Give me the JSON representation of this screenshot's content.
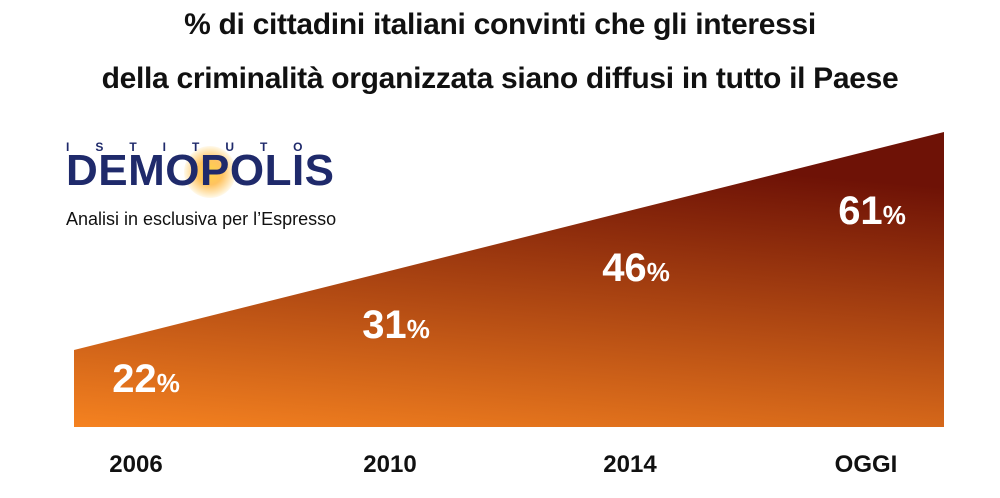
{
  "title_lines": [
    "% di cittadini italiani convinti che gli interessi",
    "della criminalità organizzata siano diffusi in tutto il Paese"
  ],
  "logo": {
    "top_word": "ISTITUTO",
    "main_word": "DEMOPOLIS"
  },
  "subtitle": "Analisi in esclusiva per l’Espresso",
  "colors": {
    "fill_light": "#f58220",
    "fill_dark": "#6e1206",
    "label_text": "#ffffff",
    "axis_text": "#111111",
    "logo_blue": "#1f2a6b"
  },
  "chart_data": {
    "type": "area",
    "categories": [
      "2006",
      "2010",
      "2014",
      "OGGI"
    ],
    "values": [
      22,
      31,
      46,
      61
    ],
    "value_suffix": "%",
    "ylim": [
      0,
      61
    ]
  }
}
